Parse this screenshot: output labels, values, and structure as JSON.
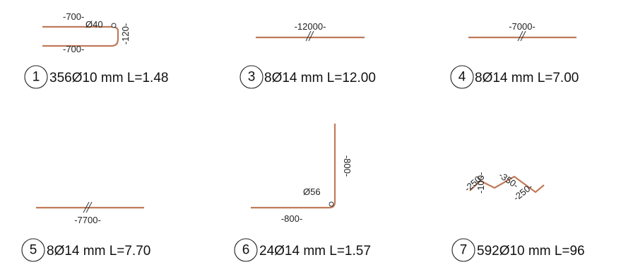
{
  "bars": [
    {
      "mark": "1",
      "spec": "356Ø10 mm L=1.48",
      "dims": [
        "-700-",
        "Ø40",
        "-120-",
        "-700-"
      ]
    },
    {
      "mark": "3",
      "spec": "8Ø14 mm L=12.00",
      "dims": [
        "-12000-"
      ]
    },
    {
      "mark": "4",
      "spec": "8Ø14 mm L=7.00",
      "dims": [
        "-7000-"
      ]
    },
    {
      "mark": "5",
      "spec": "8Ø14 mm L=7.70",
      "dims": [
        "-7700-"
      ]
    },
    {
      "mark": "6",
      "spec": "24Ø14 mm L=1.57",
      "dims": [
        "-800-",
        "Ø56",
        "-800-"
      ]
    },
    {
      "mark": "7",
      "spec": "592Ø10 mm L=96",
      "dims": [
        "-250-",
        "-100-",
        "-350-",
        "-250-"
      ]
    }
  ],
  "colors": {
    "rebar": "#c07a5a",
    "text": "#111111"
  }
}
